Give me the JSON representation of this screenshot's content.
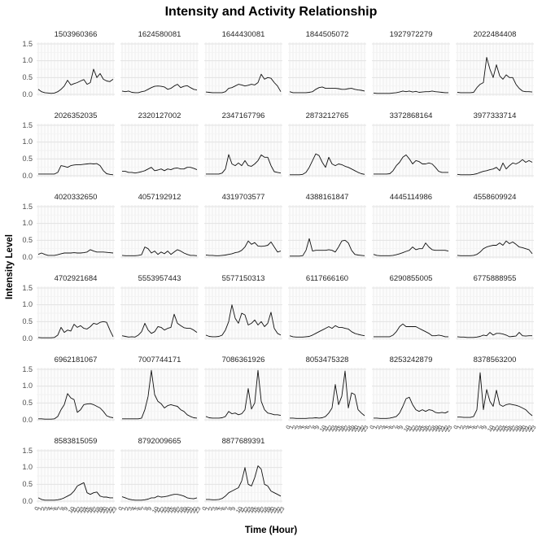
{
  "title": "Intensity and Activity Relationship",
  "x_axis": {
    "title": "Time (Hour)",
    "tick_labels": [
      "0",
      "1",
      "2",
      "3",
      "4",
      "5",
      "6",
      "7",
      "8",
      "9",
      "10",
      "11",
      "12",
      "13",
      "14",
      "15",
      "16",
      "17",
      "18",
      "19",
      "20",
      "21",
      "22",
      "23"
    ]
  },
  "y_axis": {
    "title": "Intensity Level",
    "tick_labels": [
      "1.5",
      "1.0",
      "0.5",
      "0.0"
    ],
    "tick_values": [
      1.5,
      1.0,
      0.5,
      0.0
    ]
  },
  "colors": {
    "line": "#111111",
    "grid_major": "#e3e3e3",
    "grid_minor": "#f1f1f1",
    "tick_text": "#4d4d4d",
    "strip_text": "#262626",
    "panel_bg": "#ffffff"
  },
  "chart_data": {
    "type": "line",
    "title": "Intensity and Activity Relationship",
    "xlabel": "Time (Hour)",
    "ylabel": "Intensity Level",
    "x": [
      0,
      1,
      2,
      3,
      4,
      5,
      6,
      7,
      8,
      9,
      10,
      11,
      12,
      13,
      14,
      15,
      16,
      17,
      18,
      19,
      20,
      21,
      22,
      23
    ],
    "ylim": [
      0,
      1.5
    ],
    "grid": true,
    "legend": false,
    "facet_layout": {
      "rows": 6,
      "cols": 6,
      "count": 33
    },
    "facets": [
      {
        "id": "1503960366",
        "values": [
          0.15,
          0.08,
          0.05,
          0.04,
          0.03,
          0.04,
          0.08,
          0.15,
          0.25,
          0.42,
          0.28,
          0.32,
          0.35,
          0.4,
          0.44,
          0.3,
          0.35,
          0.75,
          0.5,
          0.62,
          0.45,
          0.4,
          0.38,
          0.45
        ]
      },
      {
        "id": "1624580081",
        "values": [
          0.1,
          0.08,
          0.1,
          0.06,
          0.05,
          0.05,
          0.08,
          0.1,
          0.15,
          0.2,
          0.24,
          0.25,
          0.24,
          0.22,
          0.15,
          0.18,
          0.25,
          0.3,
          0.2,
          0.24,
          0.26,
          0.2,
          0.15,
          0.13
        ]
      },
      {
        "id": "1644430081",
        "values": [
          0.07,
          0.06,
          0.05,
          0.05,
          0.05,
          0.05,
          0.08,
          0.18,
          0.2,
          0.25,
          0.3,
          0.28,
          0.25,
          0.27,
          0.3,
          0.28,
          0.35,
          0.6,
          0.45,
          0.5,
          0.48,
          0.35,
          0.25,
          0.08
        ]
      },
      {
        "id": "1844505072",
        "values": [
          0.08,
          0.05,
          0.05,
          0.05,
          0.05,
          0.05,
          0.06,
          0.08,
          0.15,
          0.2,
          0.22,
          0.18,
          0.18,
          0.18,
          0.18,
          0.17,
          0.15,
          0.15,
          0.17,
          0.18,
          0.15,
          0.13,
          0.12,
          0.1
        ]
      },
      {
        "id": "1927972279",
        "values": [
          0.04,
          0.03,
          0.03,
          0.03,
          0.03,
          0.03,
          0.04,
          0.05,
          0.07,
          0.1,
          0.08,
          0.1,
          0.07,
          0.09,
          0.06,
          0.07,
          0.08,
          0.08,
          0.1,
          0.08,
          0.07,
          0.06,
          0.05,
          0.05
        ]
      },
      {
        "id": "2022484408",
        "values": [
          0.06,
          0.05,
          0.05,
          0.05,
          0.05,
          0.06,
          0.2,
          0.3,
          0.35,
          1.1,
          0.75,
          0.5,
          0.88,
          0.55,
          0.45,
          0.58,
          0.5,
          0.5,
          0.3,
          0.18,
          0.1,
          0.08,
          0.08,
          0.07
        ]
      },
      {
        "id": "2026352035",
        "values": [
          0.05,
          0.05,
          0.05,
          0.05,
          0.05,
          0.05,
          0.1,
          0.3,
          0.28,
          0.25,
          0.3,
          0.32,
          0.33,
          0.33,
          0.34,
          0.35,
          0.36,
          0.35,
          0.36,
          0.3,
          0.15,
          0.06,
          0.04,
          0.03
        ]
      },
      {
        "id": "2320127002",
        "values": [
          0.13,
          0.13,
          0.1,
          0.1,
          0.08,
          0.1,
          0.12,
          0.15,
          0.2,
          0.25,
          0.15,
          0.17,
          0.2,
          0.15,
          0.2,
          0.18,
          0.22,
          0.23,
          0.2,
          0.2,
          0.25,
          0.25,
          0.22,
          0.18
        ]
      },
      {
        "id": "2347167796",
        "values": [
          0.05,
          0.05,
          0.05,
          0.05,
          0.05,
          0.08,
          0.2,
          0.63,
          0.35,
          0.3,
          0.38,
          0.3,
          0.45,
          0.3,
          0.28,
          0.35,
          0.45,
          0.62,
          0.55,
          0.55,
          0.3,
          0.12,
          0.1,
          0.08
        ]
      },
      {
        "id": "2873212765",
        "values": [
          0.03,
          0.03,
          0.03,
          0.03,
          0.04,
          0.1,
          0.25,
          0.45,
          0.65,
          0.6,
          0.4,
          0.25,
          0.55,
          0.35,
          0.3,
          0.35,
          0.33,
          0.28,
          0.25,
          0.2,
          0.15,
          0.1,
          0.06,
          0.04
        ]
      },
      {
        "id": "3372868164",
        "values": [
          0.05,
          0.05,
          0.05,
          0.05,
          0.05,
          0.06,
          0.15,
          0.3,
          0.4,
          0.55,
          0.62,
          0.5,
          0.35,
          0.45,
          0.42,
          0.35,
          0.35,
          0.38,
          0.35,
          0.25,
          0.13,
          0.1,
          0.1,
          0.1
        ]
      },
      {
        "id": "3977333714",
        "values": [
          0.04,
          0.03,
          0.03,
          0.03,
          0.03,
          0.04,
          0.06,
          0.1,
          0.13,
          0.15,
          0.18,
          0.2,
          0.25,
          0.15,
          0.38,
          0.2,
          0.3,
          0.38,
          0.35,
          0.4,
          0.48,
          0.4,
          0.45,
          0.4
        ]
      },
      {
        "id": "4020332650",
        "values": [
          0.08,
          0.12,
          0.08,
          0.05,
          0.05,
          0.05,
          0.07,
          0.1,
          0.12,
          0.12,
          0.12,
          0.13,
          0.12,
          0.12,
          0.13,
          0.15,
          0.22,
          0.18,
          0.15,
          0.15,
          0.15,
          0.14,
          0.13,
          0.12
        ]
      },
      {
        "id": "4057192912",
        "values": [
          0.05,
          0.04,
          0.04,
          0.04,
          0.04,
          0.05,
          0.07,
          0.3,
          0.25,
          0.12,
          0.18,
          0.08,
          0.15,
          0.1,
          0.18,
          0.08,
          0.15,
          0.22,
          0.18,
          0.12,
          0.08,
          0.05,
          0.05,
          0.04
        ]
      },
      {
        "id": "4319703577",
        "values": [
          0.06,
          0.05,
          0.05,
          0.04,
          0.04,
          0.05,
          0.06,
          0.08,
          0.1,
          0.13,
          0.15,
          0.2,
          0.3,
          0.48,
          0.38,
          0.43,
          0.33,
          0.32,
          0.33,
          0.35,
          0.45,
          0.3,
          0.15,
          0.18
        ]
      },
      {
        "id": "4388161847",
        "values": [
          0.03,
          0.03,
          0.03,
          0.03,
          0.04,
          0.2,
          0.55,
          0.18,
          0.2,
          0.2,
          0.2,
          0.2,
          0.22,
          0.2,
          0.15,
          0.3,
          0.48,
          0.5,
          0.42,
          0.2,
          0.08,
          0.06,
          0.05,
          0.04
        ]
      },
      {
        "id": "4445114986",
        "values": [
          0.08,
          0.05,
          0.04,
          0.04,
          0.04,
          0.04,
          0.05,
          0.07,
          0.1,
          0.13,
          0.17,
          0.2,
          0.3,
          0.22,
          0.25,
          0.25,
          0.42,
          0.3,
          0.22,
          0.2,
          0.2,
          0.2,
          0.2,
          0.18
        ]
      },
      {
        "id": "4558609924",
        "values": [
          0.05,
          0.04,
          0.04,
          0.04,
          0.04,
          0.05,
          0.08,
          0.15,
          0.25,
          0.3,
          0.33,
          0.35,
          0.35,
          0.42,
          0.35,
          0.48,
          0.4,
          0.45,
          0.38,
          0.3,
          0.28,
          0.25,
          0.22,
          0.1
        ]
      },
      {
        "id": "4702921684",
        "values": [
          0.03,
          0.02,
          0.02,
          0.02,
          0.02,
          0.03,
          0.1,
          0.33,
          0.18,
          0.25,
          0.22,
          0.42,
          0.33,
          0.38,
          0.3,
          0.28,
          0.35,
          0.45,
          0.42,
          0.48,
          0.5,
          0.48,
          0.25,
          0.05
        ]
      },
      {
        "id": "5553957443",
        "values": [
          0.08,
          0.06,
          0.04,
          0.05,
          0.04,
          0.1,
          0.2,
          0.45,
          0.25,
          0.15,
          0.2,
          0.35,
          0.33,
          0.25,
          0.3,
          0.33,
          0.72,
          0.45,
          0.38,
          0.32,
          0.3,
          0.3,
          0.25,
          0.18
        ]
      },
      {
        "id": "5577150313",
        "values": [
          0.1,
          0.06,
          0.05,
          0.05,
          0.06,
          0.1,
          0.25,
          0.5,
          1.0,
          0.6,
          0.45,
          0.75,
          0.7,
          0.4,
          0.45,
          0.55,
          0.4,
          0.5,
          0.35,
          0.45,
          0.78,
          0.3,
          0.15,
          0.1
        ]
      },
      {
        "id": "6117666160",
        "values": [
          0.08,
          0.05,
          0.04,
          0.04,
          0.04,
          0.05,
          0.06,
          0.1,
          0.15,
          0.2,
          0.25,
          0.3,
          0.35,
          0.3,
          0.38,
          0.33,
          0.33,
          0.3,
          0.28,
          0.2,
          0.15,
          0.12,
          0.1,
          0.08
        ]
      },
      {
        "id": "6290855005",
        "values": [
          0.05,
          0.05,
          0.05,
          0.05,
          0.05,
          0.05,
          0.1,
          0.2,
          0.35,
          0.43,
          0.35,
          0.35,
          0.35,
          0.35,
          0.3,
          0.25,
          0.2,
          0.15,
          0.08,
          0.08,
          0.1,
          0.08,
          0.05,
          0.05
        ]
      },
      {
        "id": "6775888955",
        "values": [
          0.05,
          0.04,
          0.04,
          0.03,
          0.03,
          0.03,
          0.04,
          0.06,
          0.1,
          0.08,
          0.18,
          0.1,
          0.15,
          0.15,
          0.13,
          0.1,
          0.05,
          0.06,
          0.07,
          0.18,
          0.08,
          0.07,
          0.08,
          0.08
        ]
      },
      {
        "id": "6962181067",
        "values": [
          0.03,
          0.03,
          0.02,
          0.02,
          0.02,
          0.03,
          0.1,
          0.3,
          0.45,
          0.78,
          0.65,
          0.6,
          0.22,
          0.3,
          0.45,
          0.47,
          0.48,
          0.45,
          0.4,
          0.35,
          0.25,
          0.12,
          0.08,
          0.06
        ]
      },
      {
        "id": "7007744171",
        "values": [
          0.03,
          0.03,
          0.03,
          0.03,
          0.03,
          0.03,
          0.05,
          0.3,
          0.7,
          1.47,
          0.75,
          0.55,
          0.48,
          0.35,
          0.42,
          0.45,
          0.42,
          0.4,
          0.3,
          0.25,
          0.15,
          0.1,
          0.06,
          0.05
        ]
      },
      {
        "id": "7086361926",
        "values": [
          0.1,
          0.06,
          0.05,
          0.05,
          0.05,
          0.06,
          0.1,
          0.25,
          0.18,
          0.2,
          0.15,
          0.18,
          0.3,
          0.93,
          0.32,
          0.5,
          1.47,
          0.55,
          0.3,
          0.2,
          0.18,
          0.15,
          0.15,
          0.13
        ]
      },
      {
        "id": "8053475328",
        "values": [
          0.05,
          0.05,
          0.04,
          0.04,
          0.04,
          0.04,
          0.05,
          0.05,
          0.06,
          0.05,
          0.06,
          0.1,
          0.2,
          0.35,
          1.05,
          0.45,
          0.7,
          1.45,
          0.35,
          0.8,
          0.75,
          0.3,
          0.2,
          0.12
        ]
      },
      {
        "id": "8253242879",
        "values": [
          0.05,
          0.05,
          0.04,
          0.04,
          0.04,
          0.05,
          0.07,
          0.1,
          0.2,
          0.4,
          0.63,
          0.67,
          0.45,
          0.3,
          0.25,
          0.3,
          0.25,
          0.3,
          0.28,
          0.22,
          0.2,
          0.22,
          0.2,
          0.25
        ]
      },
      {
        "id": "8378563200",
        "values": [
          0.08,
          0.08,
          0.07,
          0.07,
          0.07,
          0.1,
          0.3,
          1.4,
          0.3,
          0.9,
          0.55,
          0.4,
          0.88,
          0.45,
          0.4,
          0.45,
          0.47,
          0.45,
          0.43,
          0.4,
          0.35,
          0.3,
          0.2,
          0.12
        ]
      },
      {
        "id": "8583815059",
        "values": [
          0.1,
          0.05,
          0.03,
          0.03,
          0.03,
          0.03,
          0.04,
          0.06,
          0.1,
          0.15,
          0.2,
          0.3,
          0.45,
          0.5,
          0.55,
          0.25,
          0.2,
          0.25,
          0.27,
          0.15,
          0.12,
          0.12,
          0.1,
          0.1
        ]
      },
      {
        "id": "8792009665",
        "values": [
          0.13,
          0.1,
          0.06,
          0.04,
          0.03,
          0.03,
          0.03,
          0.04,
          0.06,
          0.1,
          0.1,
          0.15,
          0.12,
          0.13,
          0.15,
          0.18,
          0.2,
          0.2,
          0.18,
          0.15,
          0.1,
          0.08,
          0.07,
          0.1
        ]
      },
      {
        "id": "8877689391",
        "values": [
          0.05,
          0.05,
          0.04,
          0.04,
          0.05,
          0.08,
          0.15,
          0.25,
          0.3,
          0.35,
          0.4,
          0.6,
          1.0,
          0.5,
          0.45,
          0.7,
          1.05,
          0.95,
          0.5,
          0.45,
          0.3,
          0.25,
          0.2,
          0.15
        ]
      }
    ]
  }
}
